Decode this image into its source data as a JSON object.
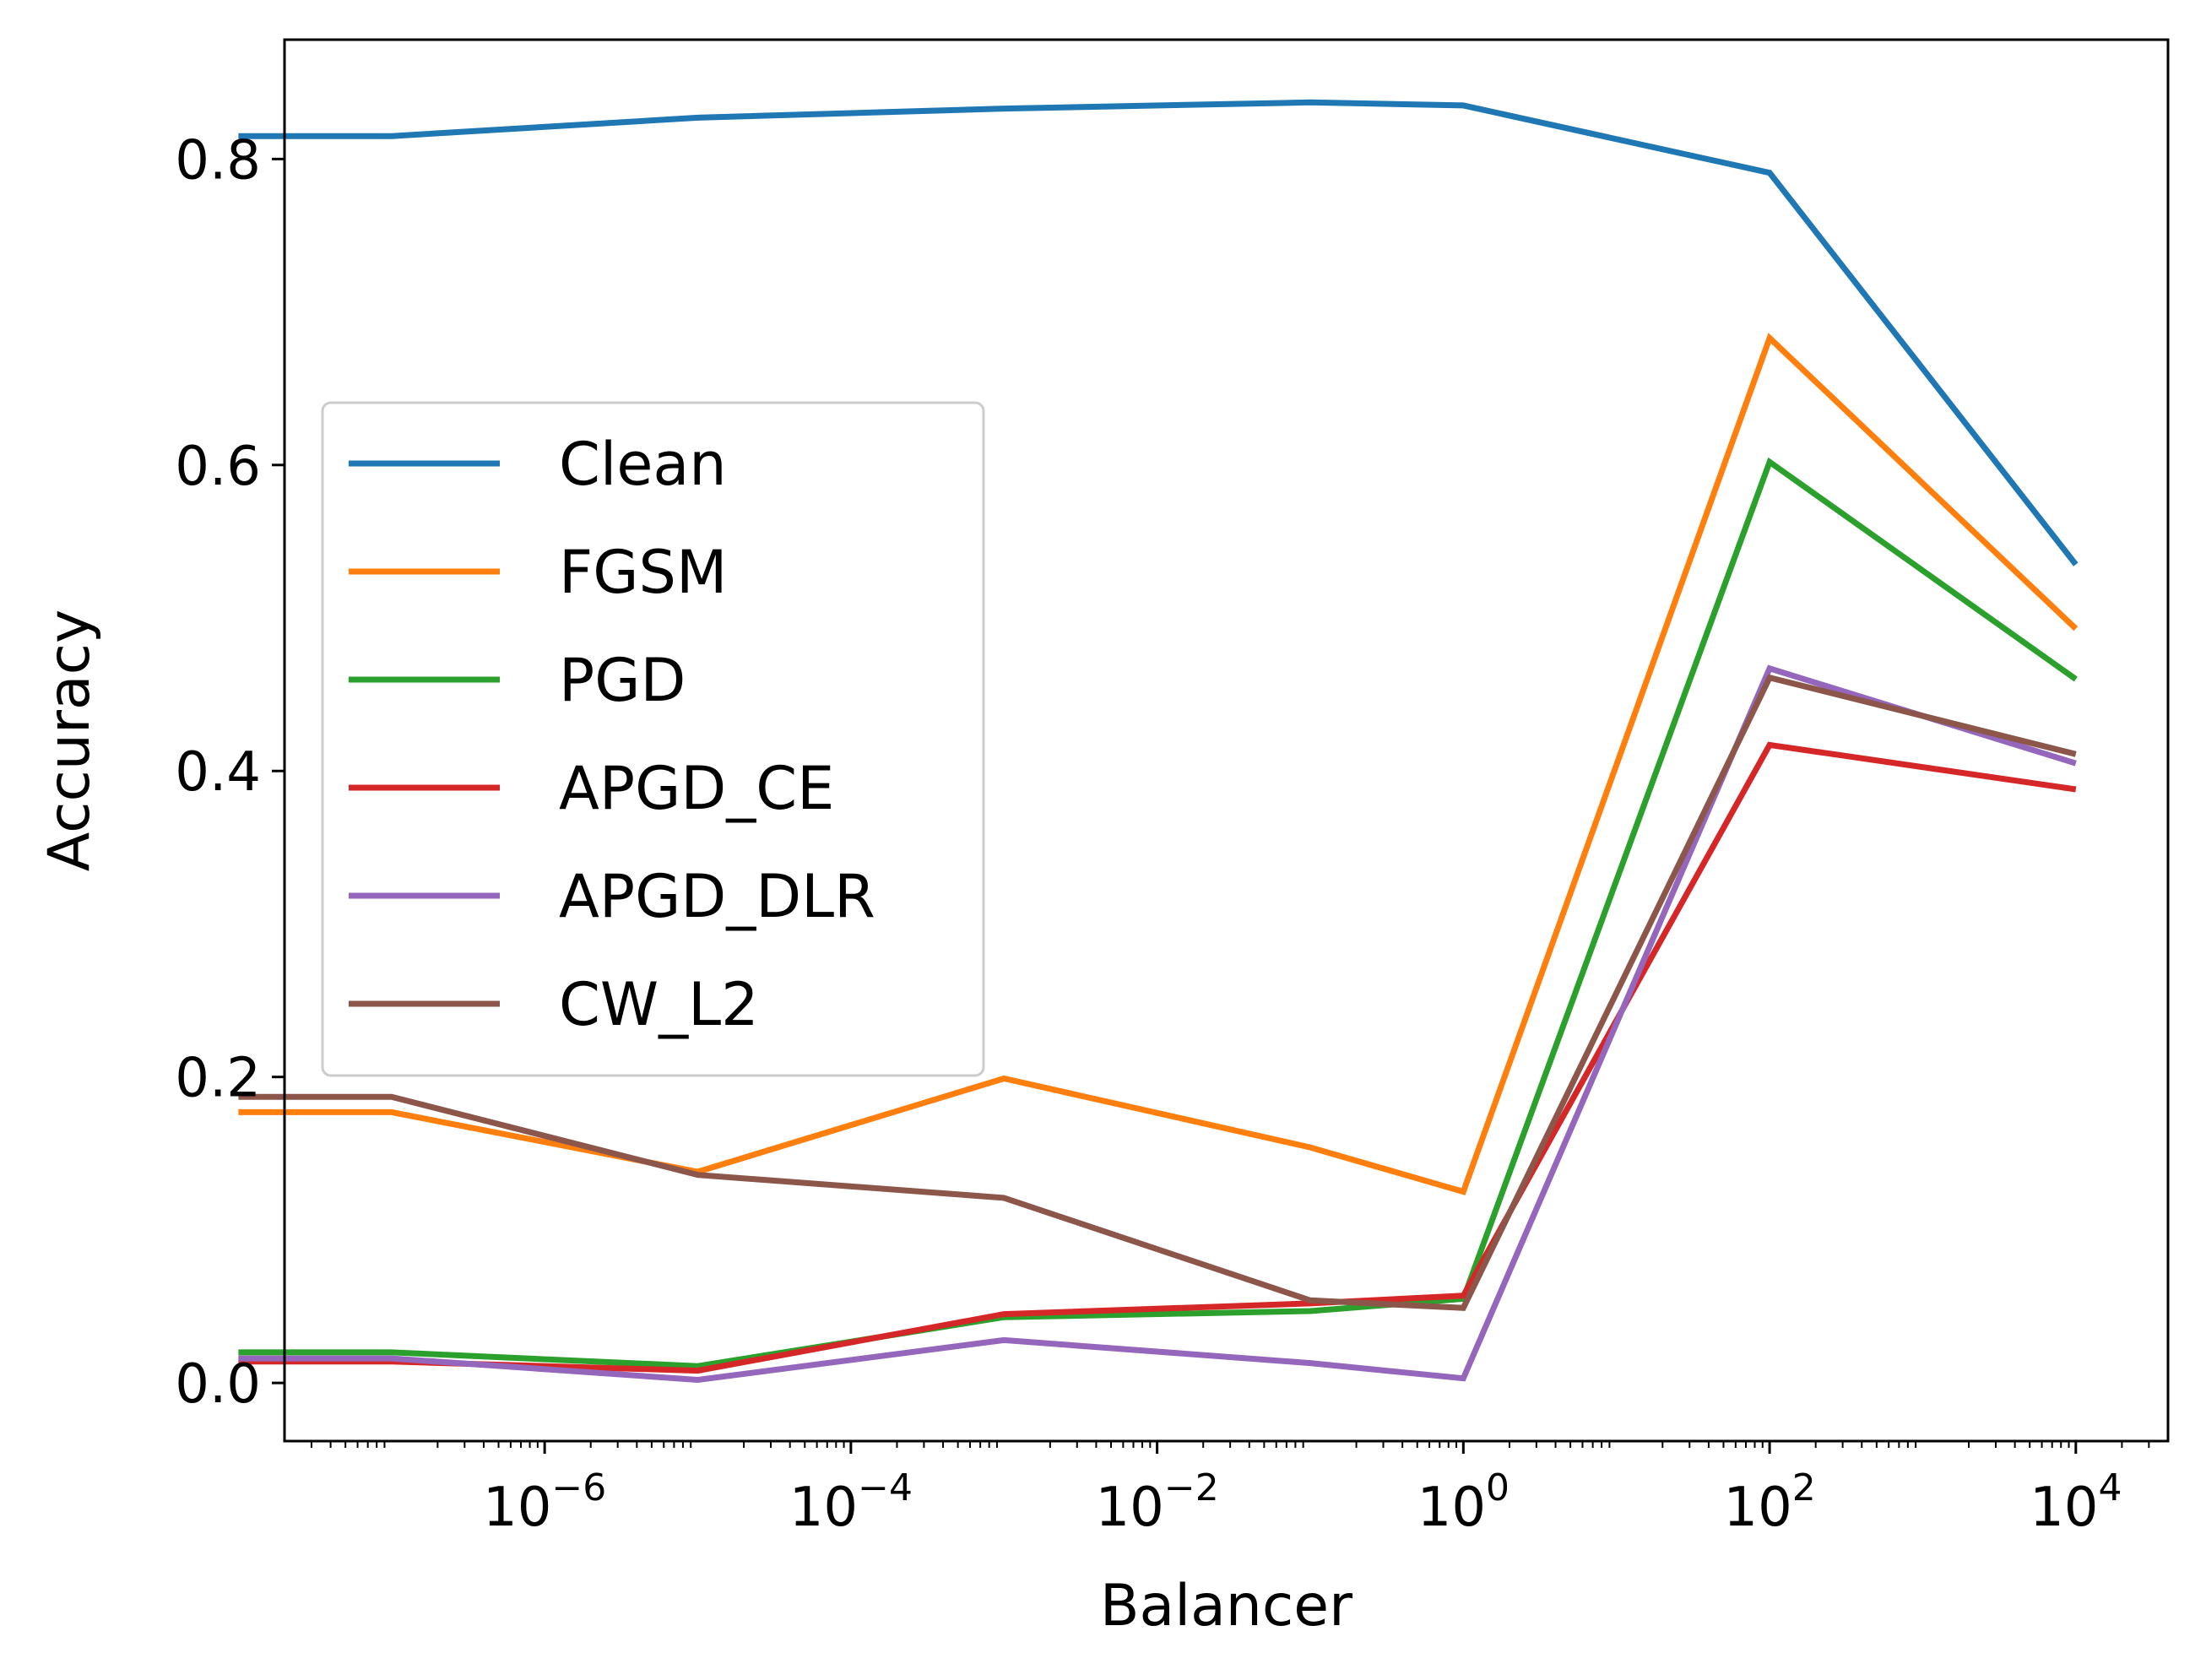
{
  "chart_data": {
    "type": "line",
    "title": "",
    "xlabel": "Balancer",
    "ylabel": "Accuracy",
    "xscale": "log",
    "xlim": [
      2e-08,
      40000
    ],
    "ylim": [
      -0.038,
      0.878
    ],
    "xticks": [
      {
        "base": "10",
        "exp": "−6",
        "value": 1e-06
      },
      {
        "base": "10",
        "exp": "−4",
        "value": 0.0001
      },
      {
        "base": "10",
        "exp": "−2",
        "value": 0.01
      },
      {
        "base": "10",
        "exp": "0",
        "value": 1
      },
      {
        "base": "10",
        "exp": "2",
        "value": 100
      },
      {
        "base": "10",
        "exp": "4",
        "value": 10000
      }
    ],
    "yticks": [
      {
        "label": "0.0",
        "value": 0.0
      },
      {
        "label": "0.2",
        "value": 0.2
      },
      {
        "label": "0.4",
        "value": 0.4
      },
      {
        "label": "0.6",
        "value": 0.6
      },
      {
        "label": "0.8",
        "value": 0.8
      }
    ],
    "grid": false,
    "legend_position": "center-left",
    "x": [
      1e-08,
      1e-07,
      1e-05,
      0.001,
      0.1,
      1,
      100,
      10000
    ],
    "series": [
      {
        "name": "Clean",
        "color": "#1f77b4",
        "values": [
          0.815,
          0.815,
          0.827,
          0.833,
          0.837,
          0.835,
          0.791,
          0.535
        ]
      },
      {
        "name": "FGSM",
        "color": "#ff7f0e",
        "values": [
          0.177,
          0.177,
          0.138,
          0.199,
          0.154,
          0.125,
          0.683,
          0.493
        ]
      },
      {
        "name": "PGD",
        "color": "#2ca02c",
        "values": [
          0.02,
          0.02,
          0.011,
          0.043,
          0.047,
          0.055,
          0.602,
          0.46
        ]
      },
      {
        "name": "APGD_CE",
        "color": "#d62728",
        "values": [
          0.014,
          0.014,
          0.008,
          0.045,
          0.052,
          0.057,
          0.417,
          0.388
        ]
      },
      {
        "name": "APGD_DLR",
        "color": "#9467bd",
        "values": [
          0.016,
          0.016,
          0.002,
          0.028,
          0.013,
          0.003,
          0.467,
          0.405
        ]
      },
      {
        "name": "CW_L2",
        "color": "#8c564b",
        "values": [
          0.187,
          0.187,
          0.136,
          0.121,
          0.054,
          0.049,
          0.461,
          0.411
        ]
      }
    ]
  }
}
